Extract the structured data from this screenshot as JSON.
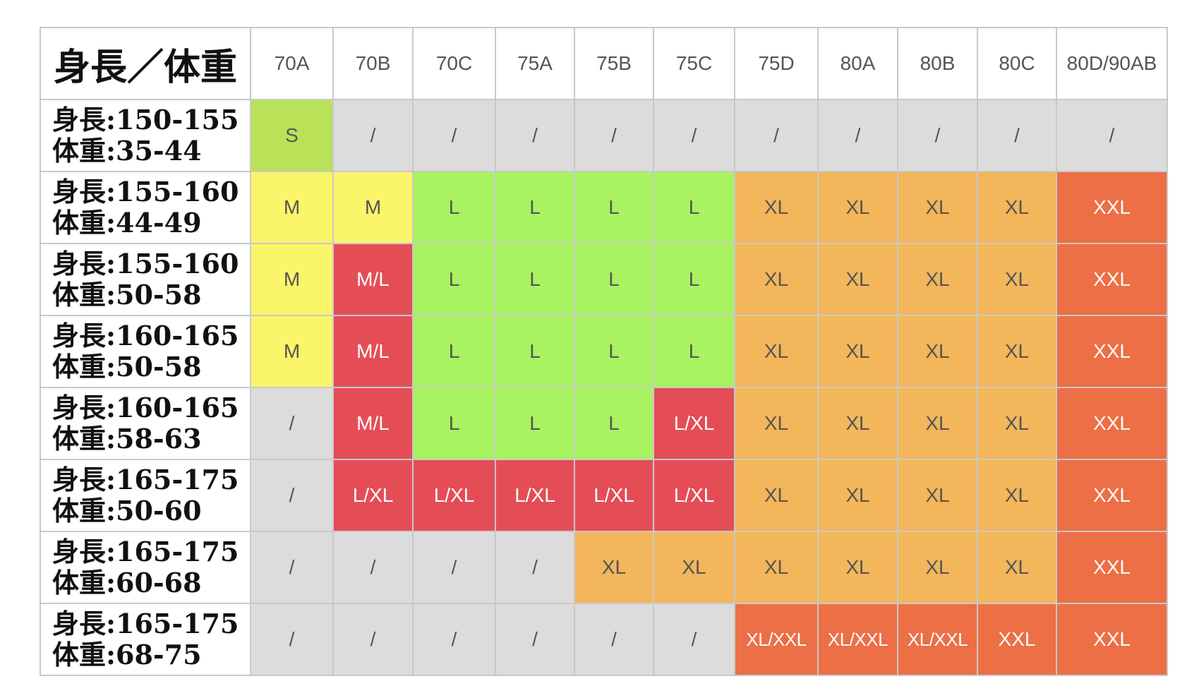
{
  "table": {
    "corner_header": "身長／体重",
    "columns": [
      "70A",
      "70B",
      "70C",
      "75A",
      "75B",
      "75C",
      "75D",
      "80A",
      "80B",
      "80C",
      "80D/90AB"
    ],
    "rows": [
      {
        "height": "身長:150-155",
        "weight": "体重:35-44",
        "cells": [
          "S",
          "/",
          "/",
          "/",
          "/",
          "/",
          "/",
          "/",
          "/",
          "/",
          "/"
        ]
      },
      {
        "height": "身長:155-160",
        "weight": "体重:44-49",
        "cells": [
          "M",
          "M",
          "L",
          "L",
          "L",
          "L",
          "XL",
          "XL",
          "XL",
          "XL",
          "XXL"
        ]
      },
      {
        "height": "身長:155-160",
        "weight": "体重:50-58",
        "cells": [
          "M",
          "M/L",
          "L",
          "L",
          "L",
          "L",
          "XL",
          "XL",
          "XL",
          "XL",
          "XXL"
        ]
      },
      {
        "height": "身長:160-165",
        "weight": "体重:50-58",
        "cells": [
          "M",
          "M/L",
          "L",
          "L",
          "L",
          "L",
          "XL",
          "XL",
          "XL",
          "XL",
          "XXL"
        ]
      },
      {
        "height": "身長:160-165",
        "weight": "体重:58-63",
        "cells": [
          "/",
          "M/L",
          "L",
          "L",
          "L",
          "L/XL",
          "XL",
          "XL",
          "XL",
          "XL",
          "XXL"
        ]
      },
      {
        "height": "身長:165-175",
        "weight": "体重:50-60",
        "cells": [
          "/",
          "L/XL",
          "L/XL",
          "L/XL",
          "L/XL",
          "L/XL",
          "XL",
          "XL",
          "XL",
          "XL",
          "XXL"
        ]
      },
      {
        "height": "身長:165-175",
        "weight": "体重:60-68",
        "cells": [
          "/",
          "/",
          "/",
          "/",
          "XL",
          "XL",
          "XL",
          "XL",
          "XL",
          "XL",
          "XXL"
        ]
      },
      {
        "height": "身長:165-175",
        "weight": "体重:68-75",
        "cells": [
          "/",
          "/",
          "/",
          "/",
          "/",
          "/",
          "XL/XXL",
          "XL/XXL",
          "XL/XXL",
          "XXL",
          "XXL"
        ]
      }
    ]
  },
  "colors": {
    "na": "#dddcdd",
    "s": "#b9e258",
    "m": "#fbf56a",
    "l": "#a8f35f",
    "xl": "#f3b65a",
    "xxl": "#ec6f45",
    "red": "#e54d56"
  }
}
